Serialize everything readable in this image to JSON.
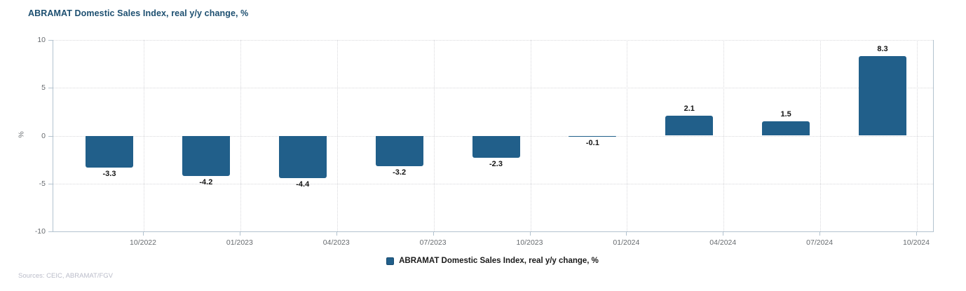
{
  "title": "ABRAMAT Domestic Sales Index, real y/y change, %",
  "y_axis": {
    "label": "%",
    "ticks": [
      10,
      5,
      0,
      -5,
      -10
    ]
  },
  "x_axis": {
    "ticks": [
      "10/2022",
      "01/2023",
      "04/2023",
      "07/2023",
      "10/2023",
      "01/2024",
      "04/2024",
      "07/2024",
      "10/2024"
    ]
  },
  "legend": {
    "label": "ABRAMAT Domestic Sales Index, real y/y change, %"
  },
  "sources": "Sources: CEIC, ABRAMAT/FGV",
  "colors": {
    "bar": "#215F8A",
    "title": "#1D4F70",
    "axis_line": "#B3C3CF",
    "gridline": "#D8D8DC",
    "tick_label": "#666A6E",
    "value_label": "#141414",
    "sources_text": "#BABCC9"
  },
  "chart_data": {
    "type": "bar",
    "title": "ABRAMAT Domestic Sales Index, real y/y change, %",
    "categories": [
      "10/2022",
      "01/2023",
      "04/2023",
      "07/2023",
      "10/2023",
      "01/2024",
      "04/2024",
      "07/2024",
      "10/2024"
    ],
    "values": [
      -3.3,
      -4.2,
      -4.4,
      -3.2,
      -2.3,
      -0.1,
      2.1,
      1.5,
      8.3
    ],
    "series_name": "ABRAMAT Domestic Sales Index, real y/y change, %",
    "xlabel": "",
    "ylabel": "%",
    "ylim": [
      -10,
      10
    ],
    "y_tick_step": 5,
    "grid": true,
    "grid_style": "dotted",
    "legend_position": "bottom",
    "value_labels": true
  }
}
